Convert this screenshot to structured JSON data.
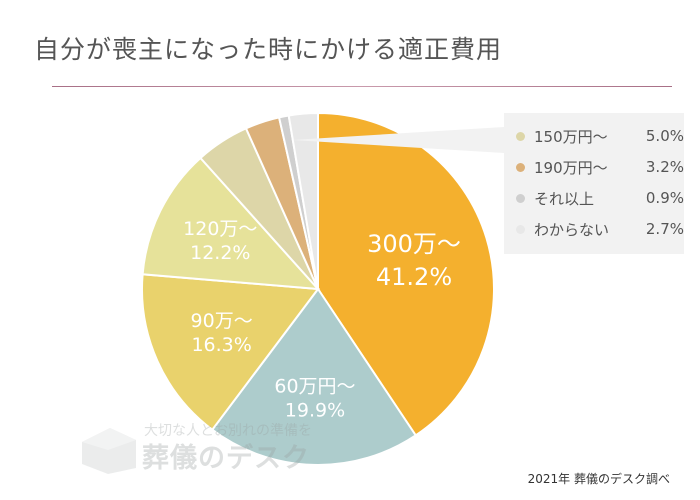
{
  "title": "自分が喪主になった時にかける適正費用",
  "source": "2021年 葬儀のデスク調べ",
  "watermark": {
    "sub": "大切な人とお別れの準備を",
    "main": "葬儀のデスク"
  },
  "chart_data": {
    "type": "pie",
    "title": "自分が喪主になった時にかける適正費用",
    "slices": [
      {
        "label": "300万〜",
        "value": 41.2,
        "value_text": "41.2%",
        "color": "#f4b02e",
        "show_label": true
      },
      {
        "label": "60万円〜",
        "value": 19.9,
        "value_text": "19.9%",
        "color": "#adcccc",
        "show_label": true
      },
      {
        "label": "90万〜",
        "value": 16.3,
        "value_text": "16.3%",
        "color": "#e9d26c",
        "show_label": true
      },
      {
        "label": "120万〜",
        "value": 12.2,
        "value_text": "12.2%",
        "color": "#e6e29a",
        "show_label": true
      },
      {
        "label": "150万円〜",
        "value": 5.0,
        "value_text": "5.0%",
        "color": "#ddd6a8",
        "show_label": false
      },
      {
        "label": "190万円〜",
        "value": 3.2,
        "value_text": "3.2%",
        "color": "#dcb17a",
        "show_label": false
      },
      {
        "label": "それ以上",
        "value": 0.9,
        "value_text": "0.9%",
        "color": "#cfcfcf",
        "show_label": false
      },
      {
        "label": "わからない",
        "value": 2.7,
        "value_text": "2.7%",
        "color": "#e8e8e8",
        "show_label": false
      }
    ],
    "legend": {
      "placement": "right",
      "entries": [
        {
          "label": "150万円〜",
          "value_text": "5.0%",
          "color": "#ddd6a8"
        },
        {
          "label": "190万円〜",
          "value_text": "3.2%",
          "color": "#dcb17a"
        },
        {
          "label": "それ以上",
          "value_text": "0.9%",
          "color": "#cfcfcf"
        },
        {
          "label": "わからない",
          "value_text": "2.7%",
          "color": "#e8e8e8"
        }
      ]
    }
  }
}
